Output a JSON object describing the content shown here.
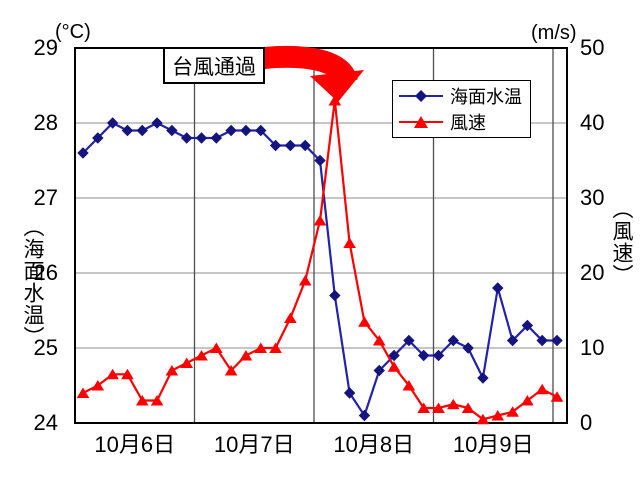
{
  "units": {
    "left": "(°C)",
    "right": "(m/s)"
  },
  "axis_titles": {
    "left": "（海面水温）",
    "right": "（風速）"
  },
  "annotation": {
    "label": "台風通過"
  },
  "colors": {
    "sea_temp_line": "#2222AA",
    "sea_temp_marker": "#14147E",
    "wind_line": "#FF0000",
    "wind_marker": "#FF0000",
    "grid_h": "#8C8C8C",
    "grid_v": "#4D4D4D",
    "border": "#000000",
    "arrow": "#FF0000"
  },
  "chart_data": {
    "type": "line",
    "categories": [
      "10月6日",
      "10月7日",
      "10月8日",
      "10月9日"
    ],
    "points_per_day": 8,
    "yticks_left": [
      "29",
      "28",
      "27",
      "26",
      "25",
      "24"
    ],
    "yticks_right": [
      "50",
      "40",
      "30",
      "20",
      "10",
      "0"
    ],
    "ylim_left": [
      24,
      29
    ],
    "ylim_right": [
      0,
      50
    ],
    "grid": true,
    "legend_position": "top-right-inside",
    "series": [
      {
        "name": "海面水温",
        "axis": "left",
        "marker": "diamond",
        "values": [
          27.6,
          27.8,
          28.0,
          27.9,
          27.9,
          28.0,
          27.9,
          27.8,
          27.8,
          27.8,
          27.9,
          27.9,
          27.9,
          27.7,
          27.7,
          27.7,
          27.5,
          25.7,
          24.4,
          24.1,
          24.7,
          24.9,
          25.1,
          24.9,
          24.9,
          25.1,
          25.0,
          24.6,
          25.8,
          25.1,
          25.3,
          25.1,
          25.1
        ]
      },
      {
        "name": "風速",
        "axis": "right",
        "marker": "triangle",
        "values": [
          4,
          5,
          6.5,
          6.5,
          3,
          3,
          7,
          8,
          9,
          10,
          7,
          9,
          10,
          10,
          14,
          19,
          27,
          43,
          24,
          13.5,
          11,
          7.5,
          5,
          2,
          2,
          2.5,
          2,
          0.5,
          1,
          1.5,
          3,
          4.5,
          3.5
        ]
      }
    ]
  }
}
